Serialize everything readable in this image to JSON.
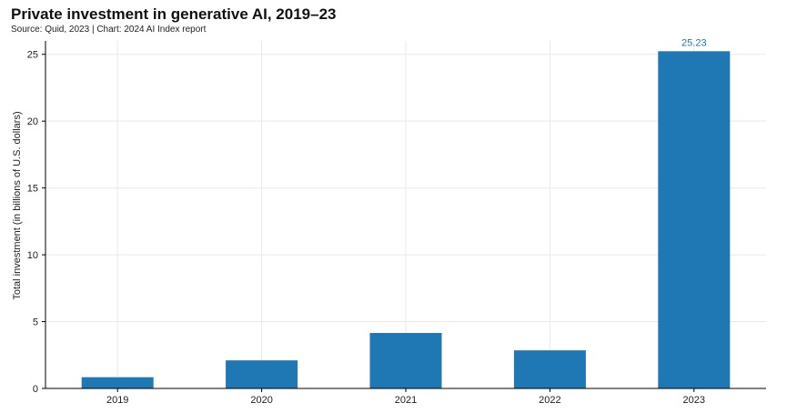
{
  "title": "Private investment in generative AI, 2019–23",
  "subtitle": "Source: Quid, 2023 | Chart: 2024 AI Index report",
  "chart_data": {
    "type": "bar",
    "categories": [
      "2019",
      "2020",
      "2021",
      "2022",
      "2023"
    ],
    "values": [
      0.84,
      2.1,
      4.15,
      2.85,
      25.23
    ],
    "data_labels": [
      "",
      "",
      "",
      "",
      "25.23"
    ],
    "xlabel": "",
    "ylabel": "Total investment (in billions of U.S. dollars)",
    "ylim": [
      0,
      26
    ],
    "yticks": [
      0,
      5,
      10,
      15,
      20,
      25
    ],
    "grid": true,
    "bar_color": "#1f77b4",
    "label_color": "#1f77b4"
  }
}
